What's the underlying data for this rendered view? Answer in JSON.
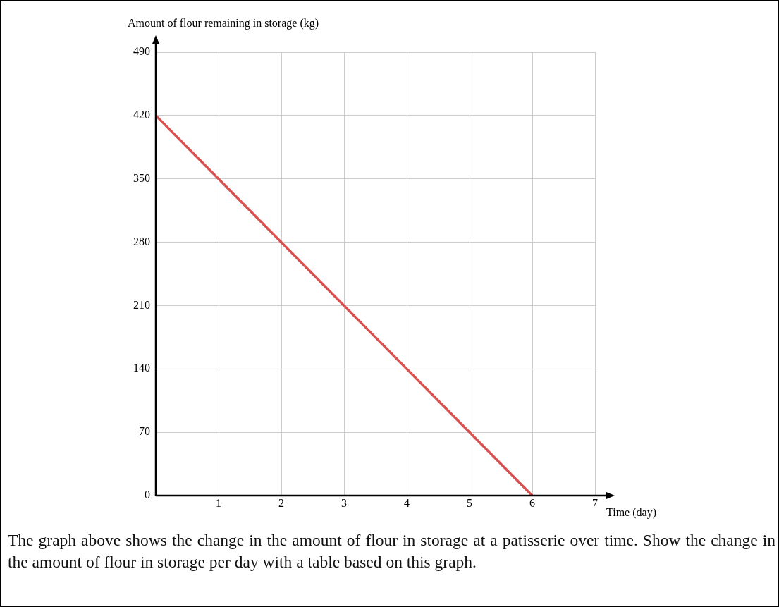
{
  "chart_data": {
    "type": "line",
    "xlabel": "Time (day)",
    "ylabel": "Amount of flour remaining in storage (kg)",
    "series": [
      {
        "color": "#d9504f",
        "x": [
          0,
          6
        ],
        "values": [
          420,
          0
        ]
      }
    ],
    "xlim": [
      0,
      7
    ],
    "xticks": [
      {
        "value": 0,
        "label": null
      },
      1,
      2,
      3,
      4,
      5,
      6,
      7
    ],
    "ylim": [
      0,
      490
    ],
    "yticks": [
      0,
      70,
      140,
      210,
      280,
      350,
      420,
      490
    ],
    "grid": true,
    "legend": false,
    "marker": "none",
    "line_style": "solid",
    "annotations": [
      "The graph above shows the change in the amount of flour in storage at a patisserie over time. Show the change in the amount of flour in storage per day with a table based on this graph."
    ]
  }
}
